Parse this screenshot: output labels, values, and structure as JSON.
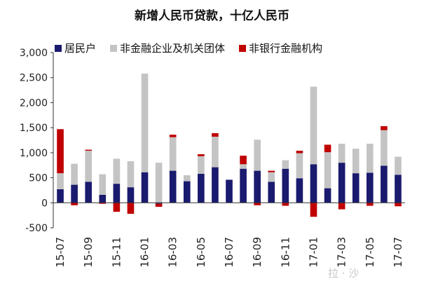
{
  "chart_data": {
    "type": "bar",
    "stacked": true,
    "title": "新增人民币贷款，十亿人民币",
    "xlabel": "",
    "ylabel": "",
    "ylim": [
      -500,
      3000
    ],
    "yticks": [
      3000,
      2500,
      2000,
      1500,
      1000,
      500,
      0,
      -500
    ],
    "ytick_labels": [
      "3,000",
      "2,500",
      "2,000",
      "1,500",
      "1,000",
      "500",
      "0",
      "-500"
    ],
    "grid": false,
    "legend_position": "top",
    "categories": [
      "15-07",
      "15-08",
      "15-09",
      "15-10",
      "15-11",
      "15-12",
      "16-01",
      "16-02",
      "16-03",
      "16-04",
      "16-05",
      "16-06",
      "16-07",
      "16-08",
      "16-09",
      "16-10",
      "16-11",
      "16-12",
      "17-01",
      "17-02",
      "17-03",
      "17-04",
      "17-05",
      "17-06",
      "17-07"
    ],
    "xtick_labels": [
      "15-07",
      "",
      "15-09",
      "",
      "15-11",
      "",
      "16-01",
      "",
      "16-03",
      "",
      "16-05",
      "",
      "16-07",
      "",
      "16-09",
      "",
      "16-11",
      "",
      "17-01",
      "",
      "17-03",
      "",
      "17-05",
      "",
      "17-07"
    ],
    "series": [
      {
        "name": "居民户",
        "color": "#1a1a6e",
        "values": [
          270,
          360,
          420,
          160,
          380,
          310,
          610,
          -20,
          640,
          430,
          580,
          710,
          460,
          680,
          640,
          420,
          680,
          490,
          770,
          290,
          800,
          590,
          600,
          740,
          560
        ]
      },
      {
        "name": "非金融企业及机关团体",
        "color": "#c4c4c4",
        "values": [
          320,
          420,
          620,
          410,
          500,
          520,
          1970,
          800,
          670,
          120,
          350,
          610,
          0,
          90,
          620,
          190,
          170,
          500,
          1550,
          720,
          380,
          490,
          580,
          710,
          360
        ]
      },
      {
        "name": "非银行金融机构",
        "color": "#c00000",
        "values": [
          880,
          -50,
          20,
          -20,
          -180,
          -220,
          0,
          -60,
          50,
          0,
          40,
          70,
          0,
          170,
          -50,
          30,
          -60,
          50,
          -280,
          150,
          -130,
          0,
          -60,
          80,
          -70
        ]
      }
    ]
  },
  "watermark": "拉 · 沙"
}
